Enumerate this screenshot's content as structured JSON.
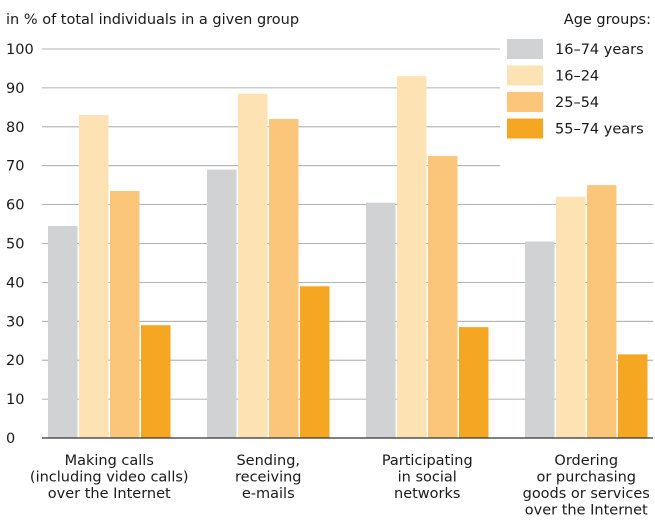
{
  "chart_data": {
    "type": "bar",
    "title": "",
    "ylabel": "in % of total individuals in a given group",
    "xlabel": "",
    "ylim": [
      0,
      100
    ],
    "yticks": [
      0,
      10,
      20,
      30,
      40,
      50,
      60,
      70,
      80,
      90,
      100
    ],
    "grid": true,
    "legend_title": "Age groups:",
    "legend_position": "top-right",
    "categories": [
      [
        "Making calls",
        "(including video calls)",
        "over the Internet"
      ],
      [
        "Sending,",
        "receiving",
        "e-mails"
      ],
      [
        "Participating",
        "in social",
        "networks"
      ],
      [
        "Ordering",
        "or purchasing",
        "goods or services",
        "over the Internet"
      ]
    ],
    "series": [
      {
        "name": "16–74 years",
        "color": "#d1d2d4",
        "values": [
          54.5,
          69,
          60.5,
          50.5
        ]
      },
      {
        "name": "16–24",
        "color": "#fde2b3",
        "values": [
          83,
          88.5,
          93,
          62
        ]
      },
      {
        "name": "25–54",
        "color": "#fbc679",
        "values": [
          63.5,
          82,
          72.5,
          65
        ]
      },
      {
        "name": "55–74 years",
        "color": "#f5a623",
        "values": [
          29,
          39,
          28.5,
          21.5
        ]
      }
    ]
  }
}
